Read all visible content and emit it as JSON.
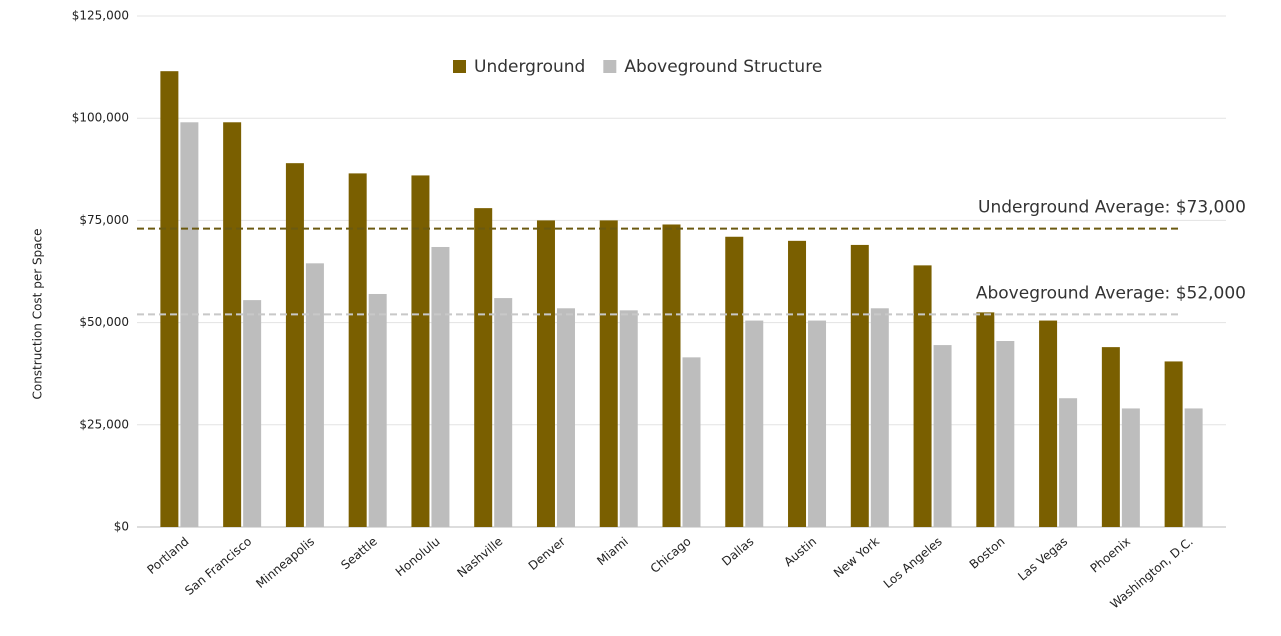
{
  "chart_data": {
    "type": "bar",
    "y_label": "Construction Cost per Space",
    "categories": [
      "Portland",
      "San Francisco",
      "Minneapolis",
      "Seattle",
      "Honolulu",
      "Nashville",
      "Denver",
      "Miami",
      "Chicago",
      "Dallas",
      "Austin",
      "New York",
      "Los Angeles",
      "Boston",
      "Las Vegas",
      "Phoenix",
      "Washington, D.C."
    ],
    "series": [
      {
        "name": "Underground",
        "color": "#7a5f00",
        "values": [
          111500,
          99000,
          89000,
          86500,
          86000,
          78000,
          75000,
          75000,
          74000,
          71000,
          70000,
          69000,
          64000,
          52500,
          50500,
          44000,
          40500
        ]
      },
      {
        "name": "Aboveground Structure",
        "color": "#bdbdbd",
        "values": [
          99000,
          55500,
          64500,
          57000,
          68500,
          56000,
          53500,
          53000,
          41500,
          50500,
          50500,
          53500,
          44500,
          45500,
          31500,
          29000,
          29000
        ]
      }
    ],
    "reference_lines": [
      {
        "value": 73000,
        "label": "Underground Average: $73,000",
        "color": "#6b5a10"
      },
      {
        "value": 52000,
        "label": "Aboveground Average: $52,000",
        "color": "#c8c8c8"
      }
    ],
    "ylim": [
      0,
      125000
    ],
    "yticks": [
      {
        "value": 0,
        "label": "$0"
      },
      {
        "value": 25000,
        "label": "$25,000"
      },
      {
        "value": 50000,
        "label": "$50,000"
      },
      {
        "value": 75000,
        "label": "$75,000"
      },
      {
        "value": 100000,
        "label": "$100,000"
      },
      {
        "value": 125000,
        "label": "$125,000"
      }
    ],
    "grid": true,
    "legend": "top"
  }
}
